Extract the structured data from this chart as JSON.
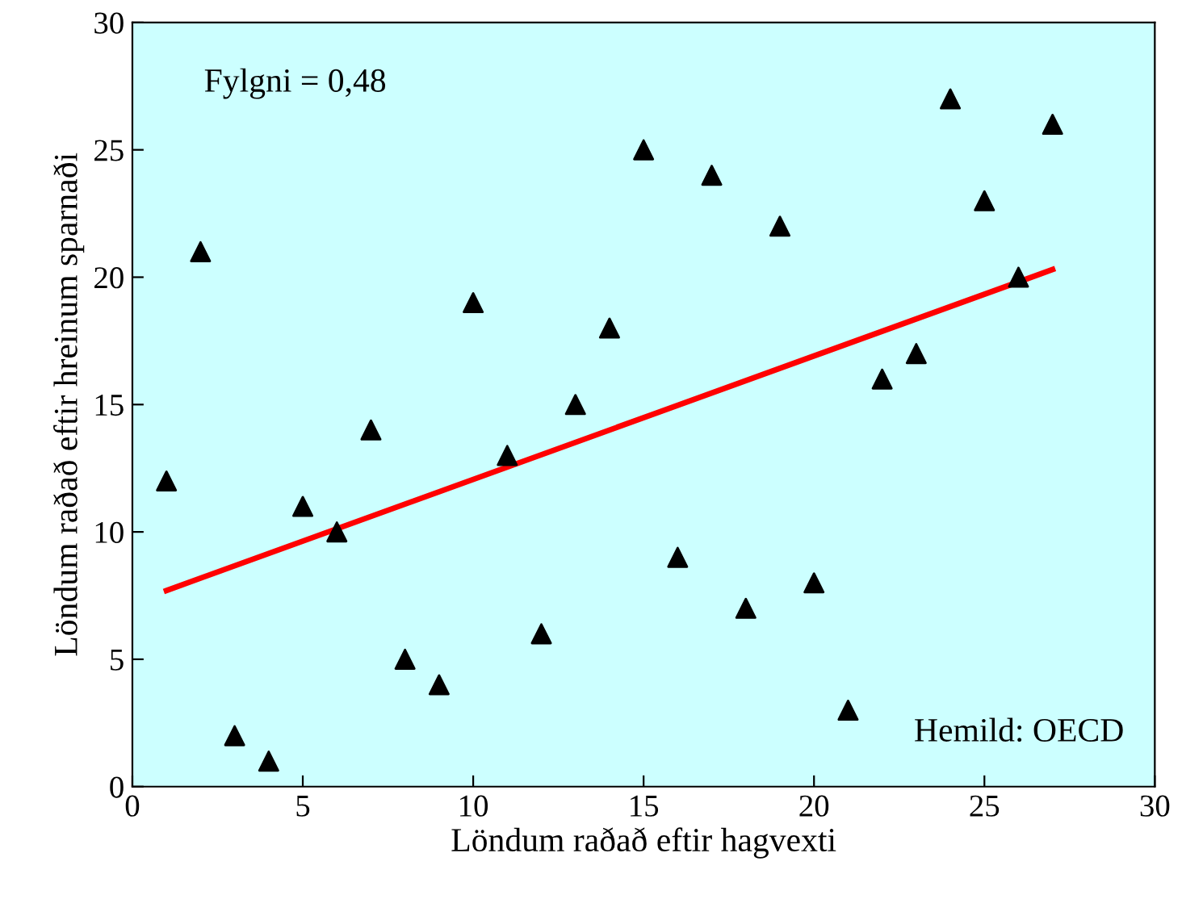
{
  "chart_data": {
    "type": "scatter",
    "xlabel": "Löndum raðað eftir hagvexti",
    "ylabel": "Löndum raðað eftir hreinum sparnaði",
    "annotations": [
      "Fylgni = 0,48",
      "Hemild: OECD"
    ],
    "series": [
      {
        "color": "#000000",
        "marker": "triangle",
        "x": [
          1,
          2,
          3,
          4,
          5,
          6,
          7,
          8,
          9,
          10,
          11,
          12,
          13,
          14,
          15,
          16,
          17,
          18,
          19,
          20,
          21,
          22,
          23,
          24,
          25,
          26,
          27
        ],
        "values": [
          12,
          21,
          2,
          1,
          11,
          10,
          14,
          5,
          4,
          19,
          13,
          6,
          15,
          18,
          25,
          9,
          24,
          7,
          22,
          8,
          3,
          16,
          17,
          27,
          23,
          20,
          26
        ]
      },
      {
        "type": "line",
        "color": "#ff0000",
        "x": [
          1,
          27
        ],
        "values": [
          7.7,
          20.3
        ]
      }
    ],
    "xlim": [
      0,
      30
    ],
    "xticks": [
      0,
      5,
      10,
      15,
      20,
      25,
      30
    ],
    "ylim": [
      0,
      30
    ],
    "yticks": [
      0,
      5,
      10,
      15,
      20,
      25,
      30
    ],
    "grid": false,
    "legend": false
  }
}
